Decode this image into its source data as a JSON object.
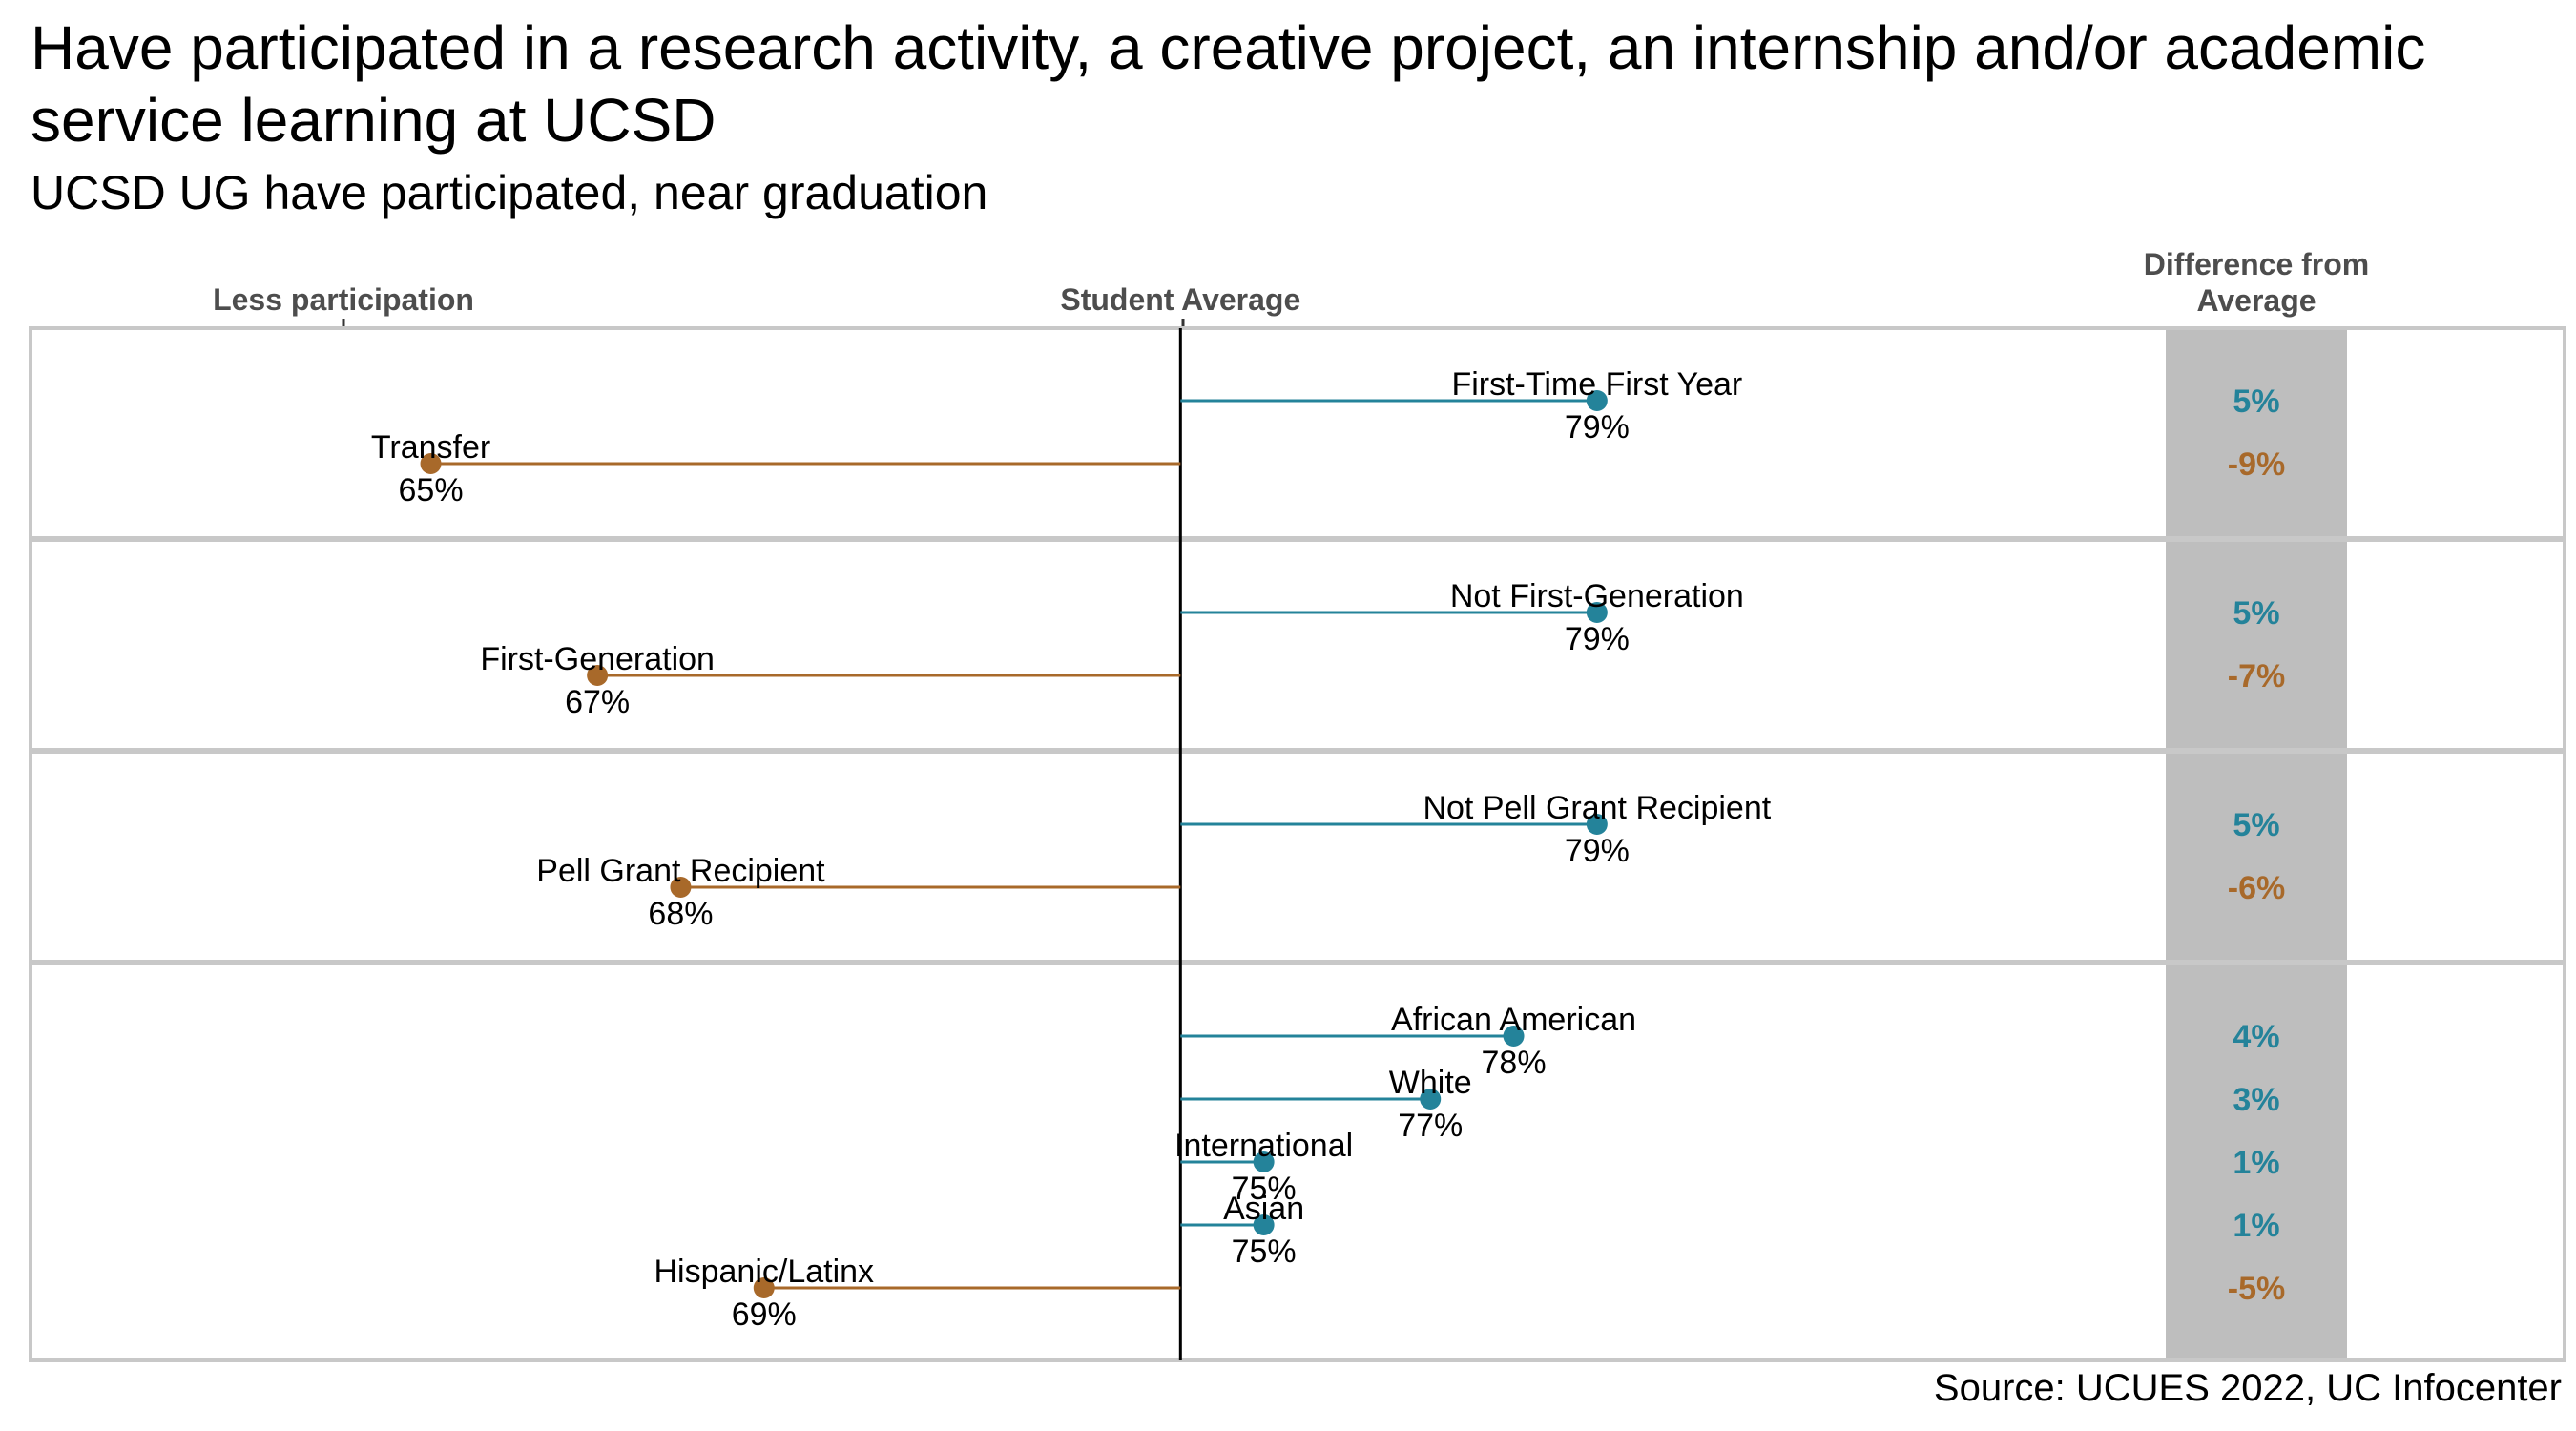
{
  "title": "Have participated in a research activity, a creative project, an internship and/or academic service learning at UCSD",
  "subtitle": "UCSD UG have participated, near graduation",
  "source": "Source: UCUES 2022, UC Infocenter",
  "colors": {
    "above": "#24839a",
    "below": "#a8692a",
    "panel_border": "#c8c8c8",
    "diff_band": "#bebebe",
    "header": "#4d4d4d"
  },
  "chart_data": {
    "type": "dot-deviation",
    "average": 74,
    "xlim": [
      60,
      86
    ],
    "headers": {
      "left": "Less participation",
      "center": "Student Average",
      "right": "Difference from Average"
    },
    "groups": [
      {
        "items": [
          {
            "label": "First-Time First Year",
            "value": 79,
            "value_label": "79%",
            "diff": "5%"
          },
          {
            "label": "Transfer",
            "value": 65,
            "value_label": "65%",
            "diff": "-9%"
          }
        ]
      },
      {
        "items": [
          {
            "label": "Not First-Generation",
            "value": 79,
            "value_label": "79%",
            "diff": "5%"
          },
          {
            "label": "First-Generation",
            "value": 67,
            "value_label": "67%",
            "diff": "-7%"
          }
        ]
      },
      {
        "items": [
          {
            "label": "Not Pell Grant Recipient",
            "value": 79,
            "value_label": "79%",
            "diff": "5%"
          },
          {
            "label": "Pell Grant Recipient",
            "value": 68,
            "value_label": "68%",
            "diff": "-6%"
          }
        ]
      },
      {
        "items": [
          {
            "label": "African American",
            "value": 78,
            "value_label": "78%",
            "diff": "4%"
          },
          {
            "label": "White",
            "value": 77,
            "value_label": "77%",
            "diff": "3%"
          },
          {
            "label": "International",
            "value": 75,
            "value_label": "75%",
            "diff": "1%"
          },
          {
            "label": "Asian",
            "value": 75,
            "value_label": "75%",
            "diff": "1%"
          },
          {
            "label": "Hispanic/Latinx",
            "value": 69,
            "value_label": "69%",
            "diff": "-5%"
          }
        ]
      }
    ]
  }
}
